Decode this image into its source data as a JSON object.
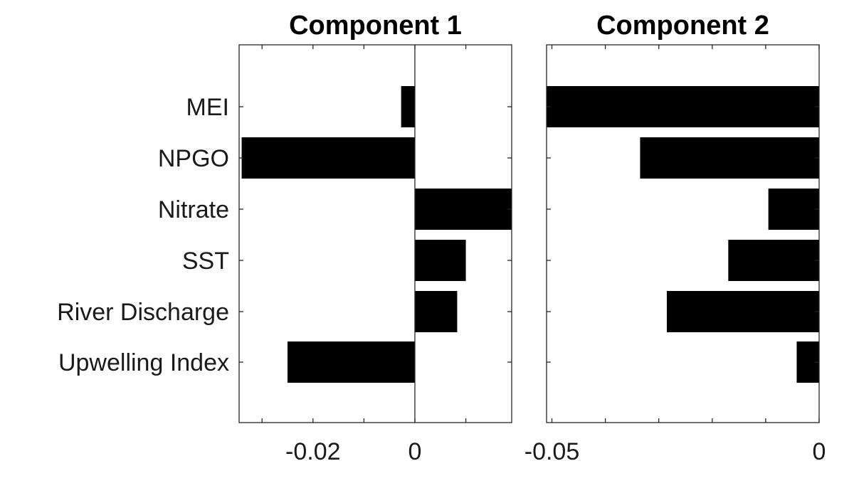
{
  "chart_data": [
    {
      "type": "bar",
      "orientation": "horizontal",
      "title": "Component 1",
      "categories": [
        "MEI",
        "NPGO",
        "Nitrate",
        "SST",
        "River Discharge",
        "Upwelling Index"
      ],
      "values": [
        -0.0027,
        -0.034,
        0.019,
        0.01,
        0.0083,
        -0.025
      ],
      "xlim": [
        -0.0345,
        0.019
      ],
      "xticks": [
        -0.03,
        -0.02,
        -0.01,
        0,
        0.01
      ],
      "xtick_labels": [
        {
          "value": -0.02,
          "label": "-0.02"
        },
        {
          "value": 0,
          "label": "0"
        }
      ],
      "bar_color": "#000000",
      "grid": false
    },
    {
      "type": "bar",
      "orientation": "horizontal",
      "title": "Component 2",
      "categories": [
        "MEI",
        "NPGO",
        "Nitrate",
        "SST",
        "River Discharge",
        "Upwelling Index"
      ],
      "values": [
        -0.051,
        -0.0335,
        -0.0095,
        -0.017,
        -0.0285,
        -0.0042
      ],
      "xlim": [
        -0.051,
        0
      ],
      "xticks": [
        -0.05,
        -0.04,
        -0.03,
        -0.02,
        -0.01,
        0
      ],
      "xtick_labels": [
        {
          "value": -0.05,
          "label": "-0.05"
        },
        {
          "value": 0,
          "label": "0"
        }
      ],
      "bar_color": "#000000",
      "grid": false
    }
  ]
}
